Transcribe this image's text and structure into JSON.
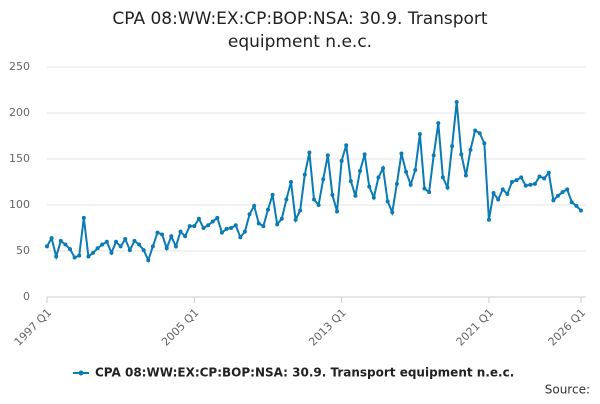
{
  "chart_data": {
    "type": "line",
    "title": "CPA 08:WW:EX:CP:BOP:NSA: 30.9. Transport equipment n.e.c.",
    "categories": [
      "1997 Q1",
      null,
      null,
      null,
      null,
      null,
      null,
      null,
      null,
      null,
      null,
      null,
      null,
      null,
      null,
      null,
      null,
      null,
      null,
      null,
      null,
      null,
      null,
      null,
      null,
      null,
      null,
      null,
      null,
      null,
      null,
      null,
      "2005 Q1",
      null,
      null,
      null,
      null,
      null,
      null,
      null,
      null,
      null,
      null,
      null,
      null,
      null,
      null,
      null,
      null,
      null,
      null,
      null,
      null,
      null,
      null,
      null,
      null,
      null,
      null,
      null,
      null,
      null,
      null,
      null,
      "2013 Q1",
      null,
      null,
      null,
      null,
      null,
      null,
      null,
      null,
      null,
      null,
      null,
      null,
      null,
      null,
      null,
      null,
      null,
      null,
      null,
      null,
      null,
      null,
      null,
      null,
      null,
      null,
      null,
      null,
      null,
      null,
      null,
      "2021 Q1",
      null,
      null,
      null,
      null,
      null,
      null,
      null,
      null,
      null,
      null,
      null,
      null,
      null,
      null,
      null,
      null,
      null,
      null,
      null,
      "2026 Q1"
    ],
    "series": [
      {
        "name": "CPA 08:WW:EX:CP:BOP:NSA: 30.9. Transport equipment n.e.c.",
        "color": "#0a7bb4",
        "values": [
          55,
          64,
          44,
          61,
          57,
          52,
          43,
          45,
          86,
          44,
          48,
          53,
          57,
          60,
          48,
          60,
          55,
          63,
          51,
          61,
          57,
          51,
          40,
          55,
          70,
          68,
          53,
          66,
          55,
          71,
          66,
          77,
          77,
          85,
          75,
          78,
          82,
          86,
          70,
          74,
          75,
          78,
          65,
          71,
          90,
          99,
          80,
          77,
          95,
          111,
          79,
          85,
          106,
          125,
          84,
          94,
          133,
          157,
          106,
          100,
          128,
          154,
          111,
          93,
          148,
          165,
          126,
          110,
          137,
          155,
          120,
          108,
          130,
          140,
          104,
          92,
          123,
          156,
          136,
          122,
          138,
          177,
          118,
          114,
          154,
          189,
          130,
          119,
          164,
          212,
          155,
          132,
          160,
          181,
          178,
          167,
          84,
          113,
          106,
          117,
          112,
          125,
          127,
          130,
          121,
          122,
          123,
          131,
          129,
          135,
          105,
          110,
          114,
          117,
          103,
          99,
          94
        ]
      }
    ],
    "ylim": [
      0,
      250
    ],
    "yticks": [
      0,
      50,
      100,
      150,
      200,
      250
    ],
    "grid": true,
    "source_label": "Source:"
  }
}
